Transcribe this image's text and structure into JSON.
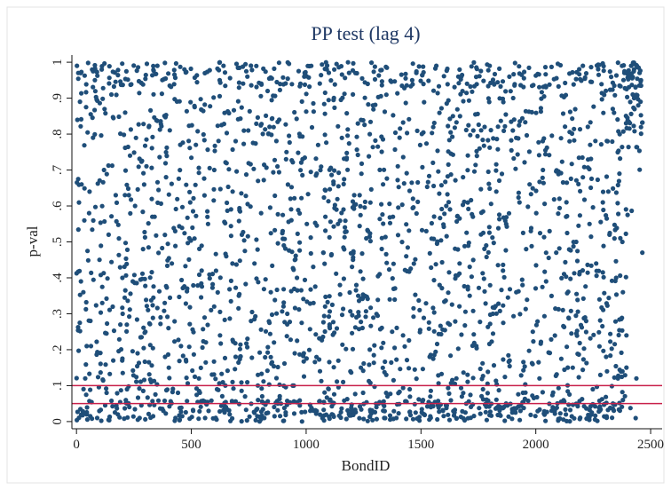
{
  "chart_data": {
    "type": "scatter",
    "title": "PP test (lag 4)",
    "xlabel": "BondID",
    "ylabel": "p-val",
    "xlim": [
      -20,
      2550
    ],
    "ylim": [
      -0.02,
      1.02
    ],
    "x_ticks": [
      0,
      500,
      1000,
      1500,
      2000,
      2500
    ],
    "x_tick_labels": [
      "0",
      "500",
      "1000",
      "1500",
      "2000",
      "2500"
    ],
    "y_ticks": [
      0,
      0.1,
      0.2,
      0.3,
      0.4,
      0.5,
      0.6,
      0.7,
      0.8,
      0.9,
      1
    ],
    "y_tick_labels": [
      "0",
      ".1",
      ".2",
      ".3",
      ".4",
      ".5",
      ".6",
      ".7",
      ".8",
      ".9",
      "1"
    ],
    "grid": false,
    "legend": "none",
    "marker_color": "#1f4e79",
    "reference_lines": [
      {
        "y": 0.1,
        "color": "#c8204a"
      },
      {
        "y": 0.05,
        "color": "#c8204a"
      }
    ],
    "n_points_approx": 2460,
    "points_note": "individual p-values per bond are approximated; roughly uniform spread over [0,1] with denser clusters near 0 and near 1",
    "points": [
      [
        2,
        0.99
      ],
      [
        8,
        0.97
      ],
      [
        15,
        0.89
      ],
      [
        22,
        0.66
      ],
      [
        30,
        0.36
      ],
      [
        38,
        0.12
      ],
      [
        45,
        0.02
      ],
      [
        55,
        0.58
      ],
      [
        63,
        0.21
      ],
      [
        72,
        0.79
      ],
      [
        80,
        0.95
      ],
      [
        90,
        0.01
      ],
      [
        100,
        0.45
      ],
      [
        112,
        0.33
      ],
      [
        120,
        0.7
      ],
      [
        131,
        0.08
      ],
      [
        140,
        0.52
      ],
      [
        152,
        0.91
      ],
      [
        160,
        0.17
      ],
      [
        171,
        0.63
      ],
      [
        180,
        0.02
      ],
      [
        191,
        0.27
      ],
      [
        200,
        0.4
      ],
      [
        212,
        0.86
      ],
      [
        220,
        0.05
      ],
      [
        233,
        0.74
      ],
      [
        245,
        0.39
      ],
      [
        255,
        0.6
      ],
      [
        266,
        0.19
      ],
      [
        275,
        0.01
      ],
      [
        290,
        0.48
      ],
      [
        300,
        0.25
      ],
      [
        315,
        0.82
      ],
      [
        325,
        0.11
      ],
      [
        340,
        0.57
      ],
      [
        352,
        0.99
      ],
      [
        366,
        0.29
      ],
      [
        378,
        0.03
      ],
      [
        390,
        0.68
      ],
      [
        402,
        0.15
      ],
      [
        415,
        0.44
      ],
      [
        430,
        0.53
      ],
      [
        442,
        0.08
      ],
      [
        455,
        0.21
      ],
      [
        470,
        0.98
      ],
      [
        482,
        0.37
      ],
      [
        495,
        0.61
      ],
      [
        508,
        0.03
      ],
      [
        520,
        0.77
      ],
      [
        533,
        0.12
      ],
      [
        545,
        0.42
      ],
      [
        560,
        0.01
      ],
      [
        573,
        0.55
      ],
      [
        586,
        0.31
      ],
      [
        600,
        0.7
      ],
      [
        612,
        0.09
      ],
      [
        625,
        0.24
      ],
      [
        640,
        0.99
      ],
      [
        652,
        0.46
      ],
      [
        667,
        0.02
      ],
      [
        680,
        0.64
      ],
      [
        693,
        0.18
      ],
      [
        707,
        0.35
      ],
      [
        720,
        0.52
      ],
      [
        734,
        0.07
      ],
      [
        748,
        0.81
      ],
      [
        760,
        0.28
      ],
      [
        775,
        0.44
      ],
      [
        790,
        0.13
      ],
      [
        804,
        0.58
      ],
      [
        818,
        0.01
      ],
      [
        832,
        0.92
      ],
      [
        846,
        0.36
      ],
      [
        860,
        0.22
      ],
      [
        875,
        0.71
      ],
      [
        890,
        0.05
      ],
      [
        903,
        0.49
      ],
      [
        918,
        0.3
      ],
      [
        932,
        0.62
      ],
      [
        946,
        0.1
      ],
      [
        960,
        0.4
      ],
      [
        975,
        0.94
      ],
      [
        990,
        0.19
      ],
      [
        1003,
        0.55
      ],
      [
        1018,
        0.03
      ],
      [
        1032,
        0.33
      ],
      [
        1046,
        0.69
      ],
      [
        1060,
        0.14
      ],
      [
        1075,
        0.47
      ],
      [
        1090,
        0.98
      ],
      [
        1103,
        0.26
      ],
      [
        1118,
        0.05
      ],
      [
        1132,
        0.59
      ],
      [
        1147,
        0.38
      ],
      [
        1161,
        0.11
      ],
      [
        1176,
        0.73
      ],
      [
        1190,
        0.02
      ],
      [
        1204,
        0.45
      ],
      [
        1219,
        0.29
      ],
      [
        1233,
        0.63
      ],
      [
        1248,
        0.08
      ],
      [
        1262,
        0.51
      ],
      [
        1277,
        0.2
      ],
      [
        1291,
        0.88
      ],
      [
        1306,
        0.04
      ],
      [
        1320,
        0.41
      ],
      [
        1335,
        0.66
      ],
      [
        1349,
        0.13
      ],
      [
        1364,
        0.34
      ],
      [
        1378,
        0.57
      ],
      [
        1393,
        0.01
      ],
      [
        1407,
        0.79
      ],
      [
        1422,
        0.24
      ],
      [
        1436,
        0.46
      ],
      [
        1451,
        0.09
      ],
      [
        1465,
        0.62
      ],
      [
        1480,
        0.97
      ],
      [
        1494,
        0.31
      ],
      [
        1509,
        0.06
      ],
      [
        1523,
        0.53
      ],
      [
        1538,
        0.18
      ],
      [
        1552,
        0.72
      ],
      [
        1567,
        0.99
      ],
      [
        1581,
        0.38
      ],
      [
        1596,
        0.03
      ],
      [
        1610,
        0.6
      ],
      [
        1625,
        0.27
      ],
      [
        1639,
        0.85
      ],
      [
        1654,
        0.12
      ],
      [
        1668,
        0.44
      ],
      [
        1683,
        0.68
      ],
      [
        1697,
        0.05
      ],
      [
        1712,
        0.35
      ],
      [
        1726,
        0.57
      ],
      [
        1741,
        0.21
      ],
      [
        1755,
        0.76
      ],
      [
        1770,
        0.09
      ],
      [
        1784,
        0.49
      ],
      [
        1799,
        0.99
      ],
      [
        1813,
        0.3
      ],
      [
        1828,
        0.64
      ],
      [
        1842,
        0.02
      ],
      [
        1857,
        0.42
      ],
      [
        1871,
        0.55
      ],
      [
        1886,
        0.17
      ],
      [
        1900,
        0.81
      ],
      [
        1915,
        0.36
      ],
      [
        1929,
        0.61
      ],
      [
        1944,
        0.08
      ],
      [
        1958,
        0.48
      ],
      [
        1973,
        0.66
      ],
      [
        1987,
        0.25
      ],
      [
        2002,
        0.58
      ],
      [
        2016,
        0.12
      ],
      [
        2031,
        0.7
      ],
      [
        2045,
        0.39
      ],
      [
        2060,
        0.53
      ],
      [
        2074,
        0.04
      ],
      [
        2089,
        0.47
      ],
      [
        2103,
        0.62
      ],
      [
        2118,
        0.31
      ],
      [
        2132,
        0.57
      ],
      [
        2147,
        0.78
      ],
      [
        2161,
        0.15
      ],
      [
        2176,
        0.5
      ],
      [
        2190,
        0.41
      ],
      [
        2205,
        0.99
      ],
      [
        2219,
        0.28
      ],
      [
        2234,
        0.55
      ],
      [
        2248,
        0.09
      ],
      [
        2263,
        0.44
      ],
      [
        2277,
        0.34
      ],
      [
        2292,
        0.61
      ],
      [
        2306,
        0.18
      ],
      [
        2321,
        0.52
      ],
      [
        2335,
        0.87
      ],
      [
        2350,
        0.4
      ],
      [
        2364,
        0.69
      ],
      [
        2379,
        0.06
      ],
      [
        2393,
        0.83
      ],
      [
        2408,
        0.96
      ],
      [
        2415,
        0.99
      ],
      [
        2422,
        0.91
      ],
      [
        2428,
        0.98
      ],
      [
        2434,
        0.93
      ],
      [
        2440,
        0.99
      ],
      [
        2446,
        0.88
      ],
      [
        2452,
        0.97
      ],
      [
        2458,
        0.95
      ],
      [
        2464,
        0.47
      ]
    ]
  }
}
